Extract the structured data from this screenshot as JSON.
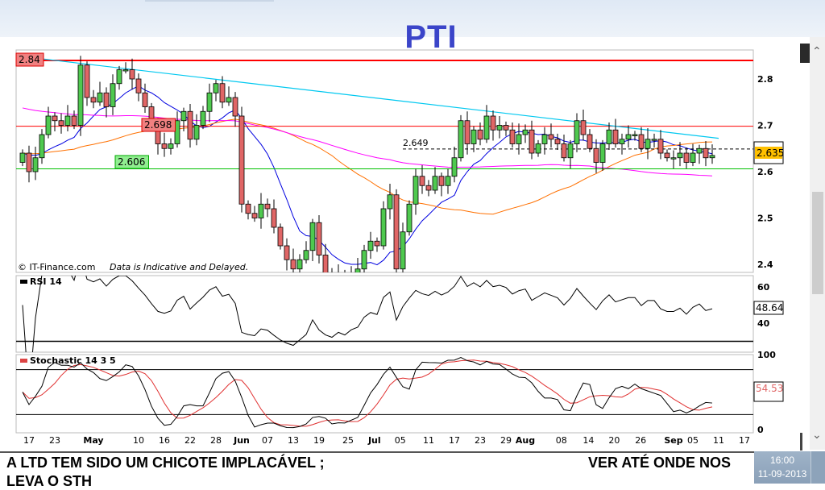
{
  "title": "PTI",
  "watermark": "© IT-Finance.com",
  "disclaimer": "Data is Indicative and Delayed.",
  "colors": {
    "up": "#4fc94f",
    "down": "#e06666",
    "resistance": "#ff0000",
    "support": "#00c000",
    "trend": "#00c8f0",
    "sma_short": "#0000e0",
    "sma_mid": "#ff7000",
    "sma_long": "#ff00ff",
    "title": "#3b45c9"
  },
  "chart_data": {
    "type": "candlestick",
    "title": "PTI",
    "ylim": [
      2.4,
      2.86
    ],
    "yticks": [
      "2.8",
      "2.7",
      "2.6",
      "2.5",
      "2.4"
    ],
    "closes": [
      2.64,
      2.6,
      2.63,
      2.68,
      2.72,
      2.71,
      2.7,
      2.72,
      2.7,
      2.83,
      2.76,
      2.75,
      2.77,
      2.74,
      2.79,
      2.82,
      2.82,
      2.8,
      2.77,
      2.74,
      2.7,
      2.66,
      2.65,
      2.66,
      2.71,
      2.73,
      2.67,
      2.7,
      2.73,
      2.77,
      2.79,
      2.75,
      2.76,
      2.72,
      2.53,
      2.51,
      2.5,
      2.53,
      2.52,
      2.48,
      2.44,
      2.41,
      2.39,
      2.41,
      2.43,
      2.49,
      2.42,
      2.38,
      2.36,
      2.38,
      2.36,
      2.38,
      2.39,
      2.43,
      2.45,
      2.44,
      2.52,
      2.55,
      2.39,
      2.47,
      2.53,
      2.59,
      2.57,
      2.56,
      2.59,
      2.57,
      2.59,
      2.63,
      2.71,
      2.66,
      2.69,
      2.67,
      2.72,
      2.69,
      2.7,
      2.69,
      2.66,
      2.68,
      2.69,
      2.64,
      2.66,
      2.68,
      2.67,
      2.66,
      2.63,
      2.66,
      2.71,
      2.68,
      2.65,
      2.62,
      2.66,
      2.69,
      2.66,
      2.67,
      2.68,
      2.68,
      2.65,
      2.67,
      2.67,
      2.64,
      2.63,
      2.63,
      2.64,
      2.62,
      2.64,
      2.65,
      2.63,
      2.635
    ],
    "xticks": [
      {
        "label": "17",
        "index": 1
      },
      {
        "label": "23",
        "index": 5
      },
      {
        "label": "May",
        "index": 11,
        "bold": true
      },
      {
        "label": "10",
        "index": 18
      },
      {
        "label": "16",
        "index": 22
      },
      {
        "label": "22",
        "index": 26
      },
      {
        "label": "28",
        "index": 30
      },
      {
        "label": "Jun",
        "index": 34,
        "bold": true
      },
      {
        "label": "07",
        "index": 38
      },
      {
        "label": "13",
        "index": 42
      },
      {
        "label": "19",
        "index": 46
      },
      {
        "label": "25",
        "index": 50.5
      },
      {
        "label": "Jul",
        "index": 54.6,
        "bold": true
      },
      {
        "label": "05",
        "index": 58.6
      },
      {
        "label": "11",
        "index": 63
      },
      {
        "label": "17",
        "index": 67
      },
      {
        "label": "23",
        "index": 71
      },
      {
        "label": "29",
        "index": 75
      },
      {
        "label": "Aug",
        "index": 78,
        "bold": true
      },
      {
        "label": "08",
        "index": 83.6
      },
      {
        "label": "14",
        "index": 87.8
      },
      {
        "label": "20",
        "index": 91.8
      },
      {
        "label": "26",
        "index": 95.9
      },
      {
        "label": "Sep",
        "index": 101,
        "bold": true
      },
      {
        "label": "05",
        "index": 104
      },
      {
        "label": "11",
        "index": 108
      },
      {
        "label": "17",
        "index": 112
      }
    ],
    "levels": [
      {
        "label": "2.84",
        "value": 2.84,
        "kind": "resistance"
      },
      {
        "label": "2.698",
        "value": 2.698,
        "kind": "resistance-thin"
      },
      {
        "label": "2.606",
        "value": 2.606,
        "kind": "support"
      },
      {
        "label": "2.649",
        "value": 2.649,
        "kind": "dashed"
      }
    ],
    "trendline": {
      "from": {
        "index": -1,
        "value": 2.85
      },
      "to": {
        "index": 108,
        "value": 2.672
      }
    },
    "last_price": "2.635",
    "rsi": {
      "label": "RSI 14",
      "period": 14,
      "last": "48.64",
      "yticks": [
        "60",
        "40"
      ],
      "ylim": [
        20,
        66
      ],
      "level": 30
    },
    "stochastic": {
      "label": "Stochastic 14 3 5",
      "k": 14,
      "slow": 3,
      "d": 5,
      "last": "54.53",
      "yticks": [
        "100",
        "0"
      ],
      "levels": [
        80,
        20
      ]
    }
  },
  "footer": {
    "message_line1": "A LTD TEM SIDO UM CHICOTE IMPLACÁVEL ;",
    "message_right": "VER ATÉ ONDE NOS",
    "message_line2": "LEVA O STH"
  },
  "clock": {
    "time": "16:00",
    "date": "11-09-2013"
  }
}
